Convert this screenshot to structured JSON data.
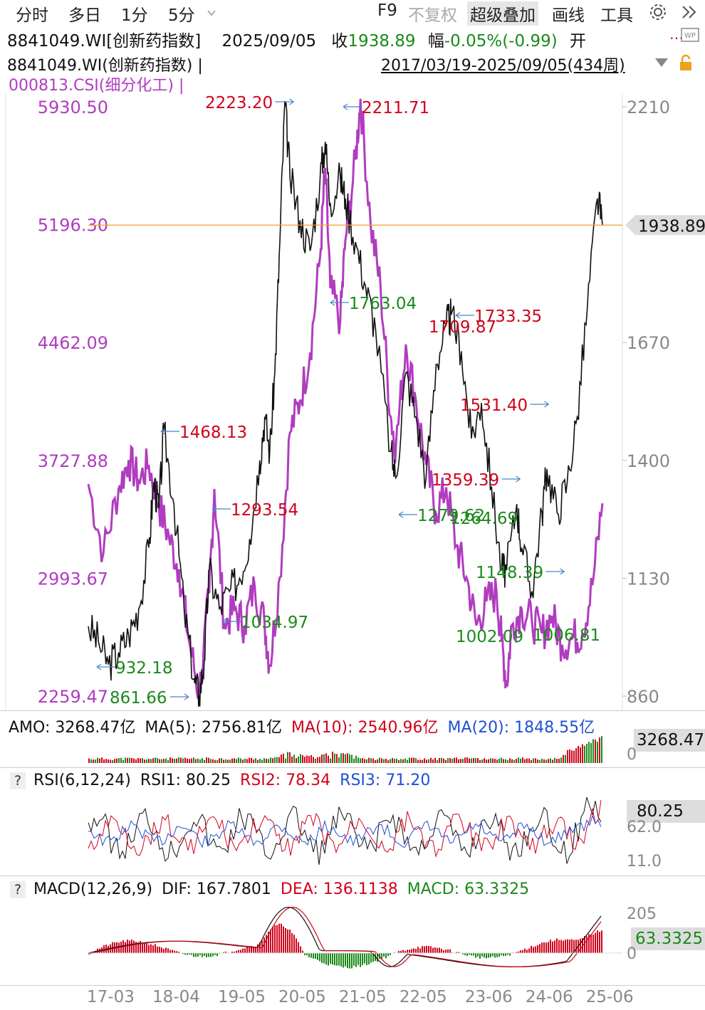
{
  "toolbar": {
    "tabs": [
      "分时",
      "多日",
      "1分",
      "5分"
    ],
    "dropdown_icon": "chevron-down-icon",
    "f9": "F9",
    "no_adjust": "不复权",
    "super_overlay": "超级叠加",
    "draw": "画线",
    "tools": "工具",
    "settings_icon": "gear-icon",
    "expand_icon": "double-chevron-right-icon"
  },
  "quote": {
    "code_name": "8841049.WI[创新药指数]",
    "date": "2025/09/05",
    "close_label": "收",
    "close": "1938.89",
    "change_label": "幅",
    "change": "-0.05%(-0.99)",
    "open_label": "开",
    "more": "…"
  },
  "legend": {
    "main": "8841049.WI(创新药指数) |",
    "overlay": "000813.CSI(细分化工) |",
    "range": "2017/03/19-2025/09/05(434周)"
  },
  "colors": {
    "main_line": "#111111",
    "overlay_line": "#b03cbf",
    "up": "#d0021b",
    "down": "#1a8a1a",
    "ma20": "#1f4fd6",
    "price_line": "#f0a020"
  },
  "volume": {
    "amo_label": "AMO:",
    "amo": "3268.47亿",
    "ma5_label": "MA(5):",
    "ma5": "2756.81亿",
    "ma10_label": "MA(10):",
    "ma10": "2540.96亿",
    "ma20_label": "MA(20):",
    "ma20": "1848.55亿",
    "badge": "3268.47",
    "zero": "0"
  },
  "rsi": {
    "help": "?",
    "title": "RSI(6,12,24)",
    "rsi1_label": "RSI1:",
    "rsi1": "80.25",
    "rsi2_label": "RSI2:",
    "rsi2": "78.34",
    "rsi3_label": "RSI3:",
    "rsi3": "71.20",
    "badge": "80.25",
    "tick_hi": "62.0",
    "tick_lo": "11.0"
  },
  "macd": {
    "help": "?",
    "title": "MACD(12,26,9)",
    "dif_label": "DIF:",
    "dif": "167.7801",
    "dea_label": "DEA:",
    "dea": "136.1138",
    "macd_label": "MACD:",
    "macd": "63.3325",
    "badge": "63.3325",
    "tick_hi": "205",
    "tick_zero": "0"
  },
  "chart_data": {
    "type": "line",
    "x_ticks": [
      "17-03",
      "18-04",
      "19-05",
      "20-05",
      "21-05",
      "22-05",
      "23-06",
      "24-06",
      "25-06"
    ],
    "left_axis_ticks": [
      "5930.50",
      "5196.30",
      "4462.09",
      "3727.88",
      "2993.67",
      "2259.47"
    ],
    "right_axis_ticks": [
      "2210",
      "1670",
      "1400",
      "1130",
      "860"
    ],
    "right_ylim": [
      860,
      2210
    ],
    "last_price_badge": "1938.89",
    "series": [
      {
        "name": "8841049.WI(创新药指数)",
        "axis": "right",
        "points": [
          [
            "2017-03",
            1020
          ],
          [
            "2017-05",
            985
          ],
          [
            "2017-07",
            932.18
          ],
          [
            "2017-09",
            960
          ],
          [
            "2017-11",
            1000
          ],
          [
            "2018-01",
            1060
          ],
          [
            "2018-03",
            1200
          ],
          [
            "2018-04",
            1350
          ],
          [
            "2018-05",
            1290
          ],
          [
            "2018-06",
            1468.13
          ],
          [
            "2018-08",
            1300
          ],
          [
            "2018-10",
            1060
          ],
          [
            "2018-12",
            900
          ],
          [
            "2019-01",
            861.66
          ],
          [
            "2019-02",
            940
          ],
          [
            "2019-03",
            1150
          ],
          [
            "2019-05",
            1060
          ],
          [
            "2019-07",
            1100
          ],
          [
            "2019-09",
            1130
          ],
          [
            "2019-11",
            1220
          ],
          [
            "2020-01",
            1400
          ],
          [
            "2020-02",
            1500
          ],
          [
            "2020-03",
            1420
          ],
          [
            "2020-04",
            1600
          ],
          [
            "2020-05",
            1900
          ],
          [
            "2020-06",
            2223.2
          ],
          [
            "2020-07",
            2050
          ],
          [
            "2020-09",
            1950
          ],
          [
            "2020-11",
            1880
          ],
          [
            "2021-01",
            2050
          ],
          [
            "2021-02",
            2130
          ],
          [
            "2021-03",
            1990
          ],
          [
            "2021-05",
            2050
          ],
          [
            "2021-06",
            2000
          ],
          [
            "2021-08",
            1900
          ],
          [
            "2021-10",
            1800
          ],
          [
            "2021-12",
            1700
          ],
          [
            "2022-03",
            1420
          ],
          [
            "2022-04",
            1360
          ],
          [
            "2022-06",
            1600
          ],
          [
            "2022-08",
            1500
          ],
          [
            "2022-10",
            1359.39
          ],
          [
            "2022-12",
            1620
          ],
          [
            "2023-02",
            1709.87
          ],
          [
            "2023-03",
            1733.35
          ],
          [
            "2023-05",
            1650
          ],
          [
            "2023-07",
            1450
          ],
          [
            "2023-09",
            1531.4
          ],
          [
            "2023-11",
            1340
          ],
          [
            "2024-01",
            1150
          ],
          [
            "2024-02",
            1148.39
          ],
          [
            "2024-04",
            1300
          ],
          [
            "2024-05",
            1200
          ],
          [
            "2024-07",
            1100
          ],
          [
            "2024-09",
            1280
          ],
          [
            "2024-10",
            1380
          ],
          [
            "2024-12",
            1280
          ],
          [
            "2025-02",
            1350
          ],
          [
            "2025-04",
            1500
          ],
          [
            "2025-06",
            1750
          ],
          [
            "2025-08",
            2000
          ],
          [
            "2025-09",
            1938.89
          ]
        ]
      },
      {
        "name": "000813.CSI(细分化工)",
        "axis": "left",
        "points": [
          [
            "2017-03",
            3580
          ],
          [
            "2017-06",
            3150
          ],
          [
            "2017-09",
            3550
          ],
          [
            "2017-11",
            3730
          ],
          [
            "2018-01",
            3600
          ],
          [
            "2018-03",
            3700
          ],
          [
            "2018-05",
            3450
          ],
          [
            "2018-07",
            3250
          ],
          [
            "2018-09",
            3050
          ],
          [
            "2018-11",
            2600
          ],
          [
            "2019-01",
            2270
          ],
          [
            "2019-03",
            2900
          ],
          [
            "2019-04",
            3550
          ],
          [
            "2019-06",
            2700
          ],
          [
            "2019-08",
            2800
          ],
          [
            "2019-10",
            2700
          ],
          [
            "2019-12",
            2950
          ],
          [
            "2020-02",
            2700
          ],
          [
            "2020-03",
            2450
          ],
          [
            "2020-05",
            3000
          ],
          [
            "2020-07",
            3900
          ],
          [
            "2020-09",
            4100
          ],
          [
            "2020-11",
            4400
          ],
          [
            "2021-01",
            5000
          ],
          [
            "2021-02",
            5550
          ],
          [
            "2021-03",
            4800
          ],
          [
            "2021-05",
            4600
          ],
          [
            "2021-06",
            5100
          ],
          [
            "2021-08",
            5600
          ],
          [
            "2021-09",
            5980
          ],
          [
            "2021-11",
            5200
          ],
          [
            "2022-01",
            4800
          ],
          [
            "2022-03",
            4000
          ],
          [
            "2022-04",
            3800
          ],
          [
            "2022-06",
            4450
          ],
          [
            "2022-08",
            4100
          ],
          [
            "2022-10",
            3700
          ],
          [
            "2022-12",
            3400
          ],
          [
            "2023-02",
            3560
          ],
          [
            "2023-04",
            3200
          ],
          [
            "2023-06",
            3000
          ],
          [
            "2023-08",
            2700
          ],
          [
            "2023-10",
            2850
          ],
          [
            "2023-12",
            2900
          ],
          [
            "2024-01",
            2600
          ],
          [
            "2024-02",
            2330
          ],
          [
            "2024-03",
            2700
          ],
          [
            "2024-05",
            2800
          ],
          [
            "2024-07",
            2730
          ],
          [
            "2024-09",
            2650
          ],
          [
            "2024-11",
            2760
          ],
          [
            "2025-01",
            2580
          ],
          [
            "2025-03",
            2620
          ],
          [
            "2025-05",
            2650
          ],
          [
            "2025-07",
            2950
          ],
          [
            "2025-09",
            3460
          ]
        ]
      }
    ],
    "annotations": [
      {
        "text": "2223.20",
        "color": "up",
        "arrow": "right"
      },
      {
        "text": "2211.71",
        "color": "up",
        "arrow": "left"
      },
      {
        "text": "1763.04",
        "color": "down",
        "arrow": "left"
      },
      {
        "text": "1733.35",
        "color": "up",
        "arrow": "left"
      },
      {
        "text": "1709.87",
        "color": "up",
        "arrow": "none"
      },
      {
        "text": "1531.40",
        "color": "up",
        "arrow": "right"
      },
      {
        "text": "1468.13",
        "color": "up",
        "arrow": "left"
      },
      {
        "text": "1359.39",
        "color": "up",
        "arrow": "right"
      },
      {
        "text": "1293.54",
        "color": "up",
        "arrow": "left"
      },
      {
        "text": "1279.62",
        "color": "down",
        "arrow": "left"
      },
      {
        "text": "1264.69",
        "color": "down",
        "arrow": "none"
      },
      {
        "text": "1148.39",
        "color": "down",
        "arrow": "right"
      },
      {
        "text": "1034.97",
        "color": "down",
        "arrow": "left"
      },
      {
        "text": "1006.81",
        "color": "down",
        "arrow": "none"
      },
      {
        "text": "1002.09",
        "color": "down",
        "arrow": "none"
      },
      {
        "text": "932.18",
        "color": "down",
        "arrow": "left"
      },
      {
        "text": "861.66",
        "color": "down",
        "arrow": "right"
      }
    ]
  }
}
